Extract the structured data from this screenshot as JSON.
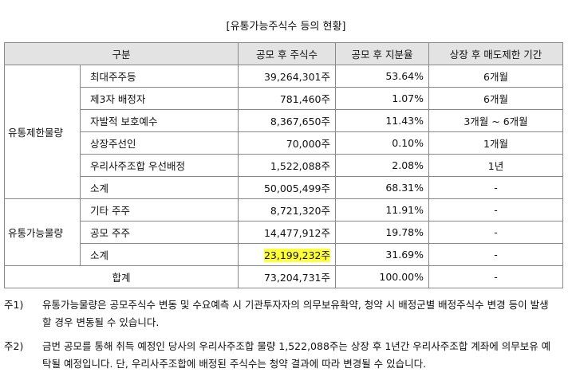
{
  "title": "[유통가능주식수 등의 현황]",
  "table": {
    "header": [
      "구분",
      "공모 후 주식수",
      "공모 후 지분율",
      "상장 후 매도제한 기간"
    ],
    "groups": [
      {
        "label": "유통제한물량",
        "rows": [
          [
            "최대주주등",
            "39,264,301주",
            "53.64%",
            "6개월"
          ],
          [
            "제3자 배정자",
            "781,460주",
            "1.07%",
            "6개월"
          ],
          [
            "자발적 보호예수",
            "8,367,650주",
            "11.43%",
            "3개월 ~ 6개월"
          ],
          [
            "상장주선인",
            "70,000주",
            "0.10%",
            "1개월"
          ],
          [
            "우리사주조합 우선배정",
            "1,522,088주",
            "2.08%",
            "1년"
          ],
          [
            "소계",
            "50,005,499주",
            "68.31%",
            "-"
          ]
        ]
      },
      {
        "label": "유통가능물량",
        "rows": [
          [
            "기타 주주",
            "8,721,320주",
            "11.91%",
            "-"
          ],
          [
            "공모 주주",
            "14,477,912주",
            "19.78%",
            "-"
          ],
          [
            "소계",
            "23,199,232주",
            "31.69%",
            "-"
          ]
        ]
      }
    ],
    "total": [
      "합계",
      "73,204,731주",
      "100.00%",
      "-"
    ]
  },
  "notes": [
    {
      "label": "주1)",
      "text": "유통가능물량은 공모주식수 변동 및 수요예측 시 기관투자자의 의무보유확약, 청약 시 배정군별 배정주식수 변경 등이 발생할 경우 변동될 수 있습니다."
    },
    {
      "label": "주2)",
      "text": "금번 공모를 통해 취득 예정인 당사의 우리사주조합 물량 1,522,088주는 상장 후 1년간 우리사주조합 계좌에 의무보유 예탁될 예정입니다. 단, 우리사주조합에 배정된 주식수는 청약 결과에 따라 변경될 수 있습니다."
    }
  ]
}
